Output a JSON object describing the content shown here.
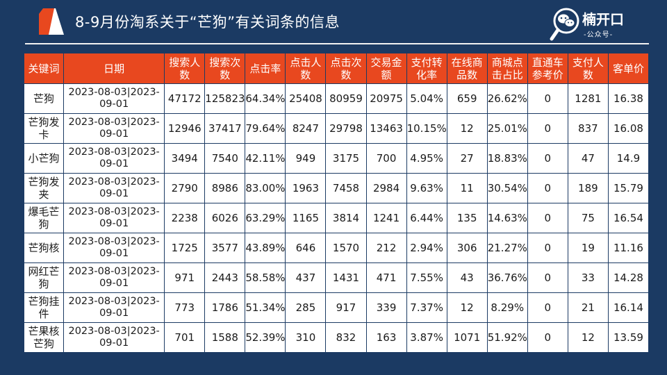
{
  "title": "8-9月份淘系关于“芒狗”有关词条的信息",
  "logo": {
    "name": "楠开口",
    "sub": "-公众号-"
  },
  "table": {
    "headers": [
      "关键词",
      "日期",
      "搜索人数",
      "搜索次数",
      "点击率",
      "点击人数",
      "点击次数",
      "交易金额",
      "支付转化率",
      "在线商品数",
      "商城点击占比",
      "直通车参考价",
      "支付人数",
      "客单价"
    ],
    "rows": [
      [
        "芒狗",
        "2023-08-03|2023-09-01",
        "47172",
        "125823",
        "64.34%",
        "25408",
        "80959",
        "20975",
        "5.04%",
        "659",
        "26.62%",
        "0",
        "1281",
        "16.38"
      ],
      [
        "芒狗发卡",
        "2023-08-03|2023-09-01",
        "12946",
        "37417",
        "79.64%",
        "8247",
        "29798",
        "13463",
        "10.15%",
        "12",
        "25.01%",
        "0",
        "837",
        "16.08"
      ],
      [
        "小芒狗",
        "2023-08-03|2023-09-01",
        "3494",
        "7540",
        "42.11%",
        "949",
        "3175",
        "700",
        "4.95%",
        "27",
        "18.83%",
        "0",
        "47",
        "14.9"
      ],
      [
        "芒狗发夹",
        "2023-08-03|2023-09-01",
        "2790",
        "8986",
        "83.00%",
        "1963",
        "7458",
        "2984",
        "9.63%",
        "11",
        "30.54%",
        "0",
        "189",
        "15.79"
      ],
      [
        "爆毛芒狗",
        "2023-08-03|2023-09-01",
        "2238",
        "6026",
        "63.29%",
        "1165",
        "3814",
        "1241",
        "6.44%",
        "135",
        "14.63%",
        "0",
        "75",
        "16.54"
      ],
      [
        "芒狗核",
        "2023-08-03|2023-09-01",
        "1725",
        "3577",
        "43.89%",
        "646",
        "1570",
        "212",
        "2.94%",
        "306",
        "21.27%",
        "0",
        "19",
        "11.16"
      ],
      [
        "网红芒狗",
        "2023-08-03|2023-09-01",
        "971",
        "2443",
        "58.58%",
        "437",
        "1431",
        "471",
        "7.55%",
        "43",
        "36.76%",
        "0",
        "33",
        "14.28"
      ],
      [
        "芒狗挂件",
        "2023-08-03|2023-09-01",
        "773",
        "1786",
        "51.34%",
        "285",
        "917",
        "339",
        "7.37%",
        "12",
        "8.29%",
        "0",
        "21",
        "16.14"
      ],
      [
        "芒果核芒狗",
        "2023-08-03|2023-09-01",
        "701",
        "1588",
        "52.39%",
        "310",
        "832",
        "163",
        "3.87%",
        "1071",
        "51.92%",
        "0",
        "12",
        "13.59"
      ]
    ]
  }
}
